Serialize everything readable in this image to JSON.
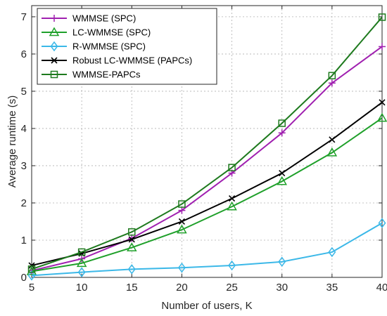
{
  "chart_data": {
    "type": "line",
    "xlabel": "Number of users, K",
    "ylabel": "Average runtime (s)",
    "xlim": [
      5,
      40
    ],
    "ylim": [
      0,
      7.3
    ],
    "xticks": [
      5,
      10,
      15,
      20,
      25,
      30,
      35,
      40
    ],
    "yticks": [
      0,
      1,
      2,
      3,
      4,
      5,
      6,
      7
    ],
    "grid": "dotted",
    "legend_position": "top-left",
    "x": [
      5,
      10,
      15,
      20,
      25,
      30,
      35,
      40
    ],
    "series": [
      {
        "name": "WMMSE (SPC)",
        "values": [
          0.18,
          0.5,
          1.05,
          1.8,
          2.8,
          3.88,
          5.22,
          6.2
        ],
        "color": "#a020b0",
        "marker": "plus"
      },
      {
        "name": "LC-WMMSE (SPC)",
        "values": [
          0.16,
          0.38,
          0.8,
          1.28,
          1.9,
          2.58,
          3.35,
          4.28
        ],
        "color": "#1fa02a",
        "marker": "triangle"
      },
      {
        "name": "R-WMMSE (SPC)",
        "values": [
          0.05,
          0.14,
          0.22,
          0.26,
          0.32,
          0.42,
          0.68,
          1.46
        ],
        "color": "#3bb8e8",
        "marker": "diamond"
      },
      {
        "name": "Robust LC-WMMSE (PAPCs)",
        "values": [
          0.32,
          0.64,
          1.02,
          1.5,
          2.12,
          2.8,
          3.7,
          4.7
        ],
        "color": "#000000",
        "marker": "x"
      },
      {
        "name": "WMMSE-PAPCs",
        "values": [
          0.22,
          0.68,
          1.22,
          1.97,
          2.95,
          4.14,
          5.42,
          6.99
        ],
        "color": "#1e7a1e",
        "marker": "square"
      }
    ]
  }
}
